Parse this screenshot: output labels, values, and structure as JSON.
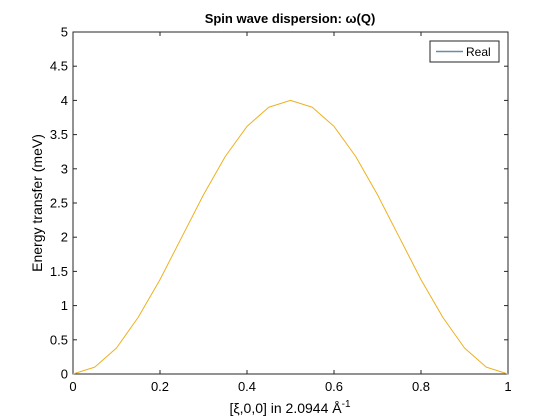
{
  "chart_data": {
    "type": "line",
    "title": "Spin wave dispersion: ω(Q)",
    "xlabel": "[ξ,0,0] in 2.0944 Å",
    "xlabel_superscript": "-1",
    "ylabel": "Energy transfer (meV)",
    "xlim": [
      0,
      1
    ],
    "ylim": [
      0,
      5
    ],
    "xticks": [
      "0",
      "0.2",
      "0.4",
      "0.6",
      "0.8",
      "1"
    ],
    "yticks": [
      "0",
      "0.5",
      "1",
      "1.5",
      "2",
      "2.5",
      "3",
      "3.5",
      "4",
      "4.5",
      "5"
    ],
    "grid": false,
    "legend_position": "top-right",
    "series": [
      {
        "name": "Real",
        "color": "#edb120",
        "legend_color": "#6f8aa8",
        "x": [
          0,
          0.05,
          0.1,
          0.15,
          0.2,
          0.25,
          0.3,
          0.35,
          0.4,
          0.45,
          0.5,
          0.55,
          0.6,
          0.65,
          0.7,
          0.75,
          0.8,
          0.85,
          0.9,
          0.95,
          1
        ],
        "y": [
          0,
          0.1,
          0.38,
          0.83,
          1.38,
          2.0,
          2.62,
          3.18,
          3.62,
          3.9,
          4.0,
          3.9,
          3.62,
          3.18,
          2.62,
          2.0,
          1.38,
          0.83,
          0.38,
          0.1,
          0
        ]
      }
    ]
  }
}
